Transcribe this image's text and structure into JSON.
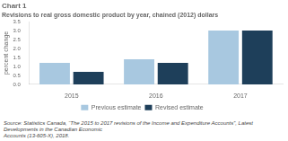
{
  "chart_data": {
    "type": "bar",
    "title": "Chart 1",
    "subtitle": "Revisions to real gross domestic product by year, chained (2012) dollars",
    "ylabel": "percent change",
    "categories": [
      "2015",
      "2016",
      "2017"
    ],
    "series": [
      {
        "name": "Previous estimate",
        "color": "#a8c8e0",
        "values": [
          1.2,
          1.4,
          3.0
        ]
      },
      {
        "name": "Revised estimate",
        "color": "#1e3f5a",
        "values": [
          0.7,
          1.2,
          3.0
        ]
      }
    ],
    "ylim": [
      0,
      3.5
    ],
    "yticks": [
      {
        "value": 0,
        "label": "0.0"
      },
      0.5,
      {
        "value": 1,
        "label": "1.0"
      },
      1.5,
      {
        "value": 2,
        "label": "2.0"
      },
      2.5,
      {
        "value": 3,
        "label": "3.0"
      },
      3.5
    ],
    "grid": false,
    "legend": "bottom",
    "annotations": [
      "Source: Statistics Canada, “The 2015 to 2017 revisions of the Income and Expenditure Accounts”, Latest Developments in the Canadian Economic\nAccounts (13-605-X), 2018."
    ]
  }
}
